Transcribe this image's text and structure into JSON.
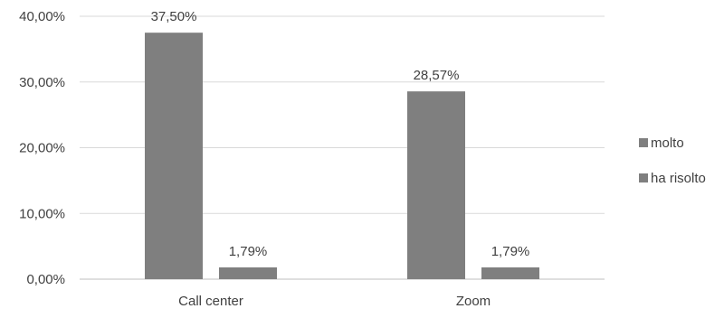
{
  "chart_data": {
    "type": "bar",
    "categories": [
      "Call center",
      "Zoom"
    ],
    "series": [
      {
        "name": "molto",
        "values": [
          37.5,
          28.57
        ],
        "labels": [
          "37,50%",
          "28,57%"
        ]
      },
      {
        "name": "ha risolto",
        "values": [
          1.79,
          1.79
        ],
        "labels": [
          "1,79%",
          "1,79%"
        ]
      }
    ],
    "ylim": [
      0,
      40
    ],
    "yticks": [
      0,
      10,
      20,
      30,
      40
    ],
    "ytick_labels": [
      "0,00%",
      "10,00%",
      "20,00%",
      "30,00%",
      "40,00%"
    ],
    "grid": true,
    "legend_position": "right",
    "colors": {
      "bar": "#7f7f7f",
      "grid": "#d9d9d9",
      "text": "#404040"
    }
  }
}
